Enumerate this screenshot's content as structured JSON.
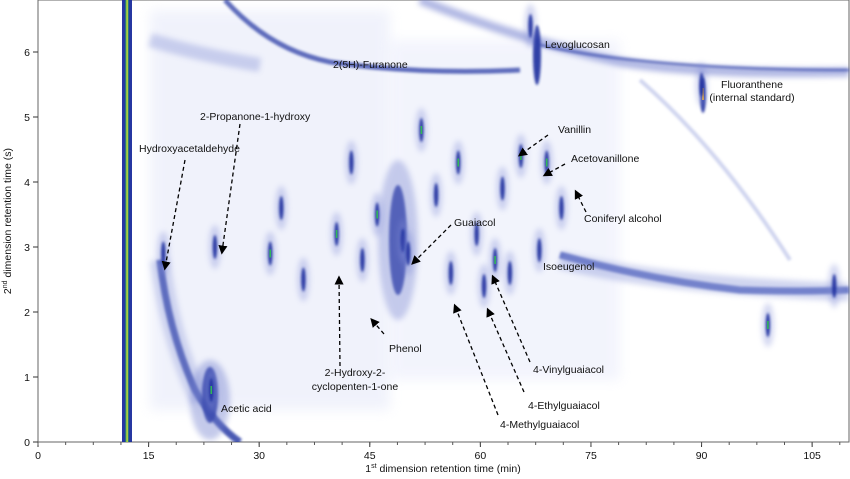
{
  "chart_data": {
    "type": "heatmap",
    "xlabel_main": "1",
    "xlabel_sup": "st",
    "xlabel_rest": " dimension retention time (min)",
    "ylabel_main": "2",
    "ylabel_sup": "nd",
    "ylabel_rest": " dimension retention time (s)",
    "xlim": [
      0,
      110
    ],
    "ylim": [
      0,
      6.8
    ],
    "x_ticks": [
      0,
      15,
      30,
      45,
      60,
      75,
      90,
      105
    ],
    "y_ticks": [
      0,
      1,
      2,
      3,
      4,
      5,
      6
    ],
    "annotations": [
      {
        "text": "Hydroxyacetaldehyde",
        "x": 17.0,
        "y": 2.7
      },
      {
        "text": "2-Propanone-1-hydroxy",
        "x": 24.5,
        "y": 2.9
      },
      {
        "text": "2-Hydroxy-2-",
        "x": 40.5,
        "y": 2.6
      },
      {
        "text": "cyclopenten-1-one",
        "x": 40.5,
        "y": 2.6
      },
      {
        "text": "Phenol",
        "x": 45.0,
        "y": 1.95
      },
      {
        "text": "Guaiacol",
        "x": 50.0,
        "y": 2.95
      },
      {
        "text": "4-Methylguaiacol",
        "x": 56.0,
        "y": 2.2
      },
      {
        "text": "4-Ethylguaiacol",
        "x": 61.0,
        "y": 2.15
      },
      {
        "text": "4-Vinylguaiacol",
        "x": 61.5,
        "y": 2.6
      },
      {
        "text": "Isoeugenol",
        "x": 68.0,
        "y": 2.8
      },
      {
        "text": "Vanillin",
        "x": 65.3,
        "y": 4.5
      },
      {
        "text": "Acetovanillone",
        "x": 68.8,
        "y": 4.3
      },
      {
        "text": "Coniferyl alcohol",
        "x": 72.5,
        "y": 4.0
      },
      {
        "text": "Levoglucosan",
        "x": 67.5,
        "y": 6.35
      },
      {
        "text": "2(5H)-Furanone",
        "x": 39.0,
        "y": 6.0
      },
      {
        "text": "Fluoranthene",
        "x": 90.0,
        "y": 5.6
      },
      {
        "text": "(internal standard)",
        "x": 90.0,
        "y": 5.4
      },
      {
        "text": "Acetic acid",
        "x": 23.5,
        "y": 0.5
      }
    ],
    "peaks": [
      {
        "x": 23.5,
        "y": 0.8
      },
      {
        "x": 24.0,
        "y": 3.0
      },
      {
        "x": 17.0,
        "y": 2.9
      },
      {
        "x": 31.5,
        "y": 2.9
      },
      {
        "x": 33.0,
        "y": 3.6
      },
      {
        "x": 36.0,
        "y": 2.5
      },
      {
        "x": 40.5,
        "y": 3.2
      },
      {
        "x": 42.5,
        "y": 4.3
      },
      {
        "x": 44.0,
        "y": 2.8
      },
      {
        "x": 46.0,
        "y": 3.5
      },
      {
        "x": 49.5,
        "y": 3.1
      },
      {
        "x": 50.2,
        "y": 2.9
      },
      {
        "x": 52.0,
        "y": 4.8
      },
      {
        "x": 54.0,
        "y": 3.8
      },
      {
        "x": 56.0,
        "y": 2.6
      },
      {
        "x": 57.0,
        "y": 4.3
      },
      {
        "x": 59.5,
        "y": 3.2
      },
      {
        "x": 60.5,
        "y": 2.4
      },
      {
        "x": 62.0,
        "y": 2.8
      },
      {
        "x": 63.0,
        "y": 3.9
      },
      {
        "x": 64.0,
        "y": 2.6
      },
      {
        "x": 65.5,
        "y": 4.4
      },
      {
        "x": 66.8,
        "y": 6.4
      },
      {
        "x": 68.0,
        "y": 2.95
      },
      {
        "x": 69.0,
        "y": 4.3
      },
      {
        "x": 71.0,
        "y": 3.6
      },
      {
        "x": 90.0,
        "y": 5.5
      },
      {
        "x": 99.0,
        "y": 1.8
      },
      {
        "x": 108.0,
        "y": 2.4
      }
    ],
    "grid": false,
    "legend": "none"
  }
}
